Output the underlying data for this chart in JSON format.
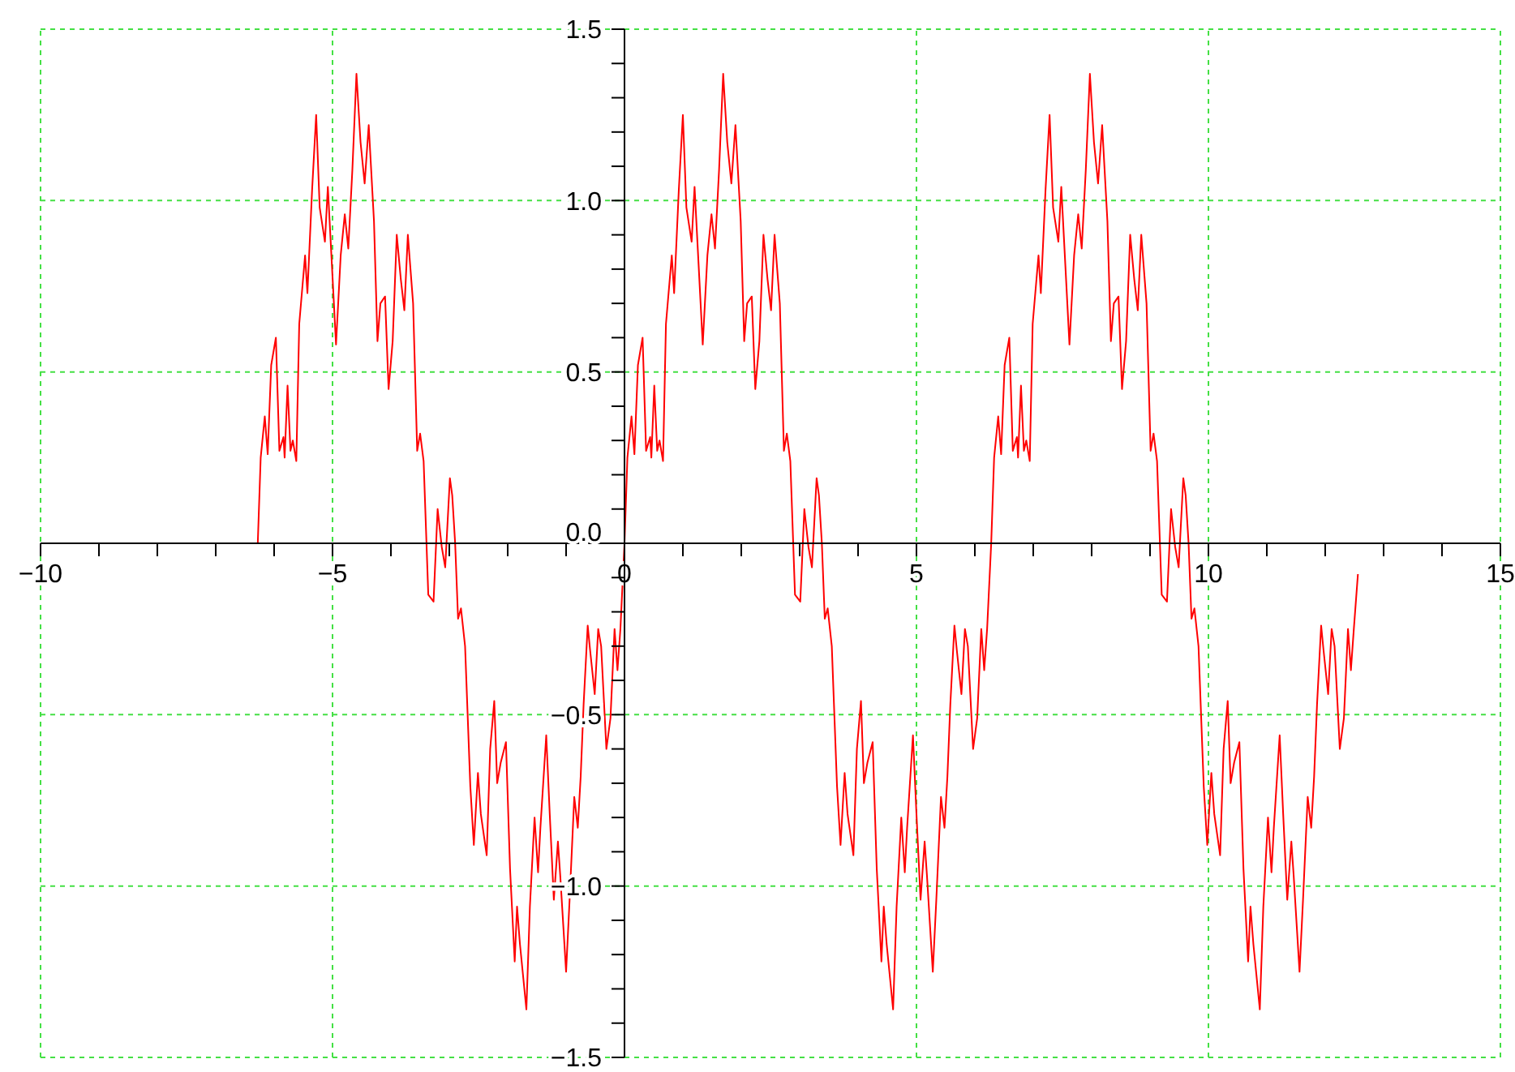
{
  "chart_data": {
    "type": "line",
    "grid": true,
    "xlim": [
      -10,
      15
    ],
    "ylim": [
      -1.5,
      1.5
    ],
    "xticks": [
      {
        "value": -10,
        "label": "−10"
      },
      {
        "value": -9,
        "label": null
      },
      {
        "value": -8,
        "label": null
      },
      {
        "value": -7,
        "label": null
      },
      {
        "value": -6,
        "label": null
      },
      {
        "value": -5,
        "label": "−5"
      },
      {
        "value": -4,
        "label": null
      },
      {
        "value": -3,
        "label": null
      },
      {
        "value": -2,
        "label": null
      },
      {
        "value": -1,
        "label": null
      },
      0,
      {
        "value": 1,
        "label": null
      },
      {
        "value": 2,
        "label": null
      },
      {
        "value": 3,
        "label": null
      },
      {
        "value": 4,
        "label": null
      },
      5,
      {
        "value": 6,
        "label": null
      },
      {
        "value": 7,
        "label": null
      },
      {
        "value": 8,
        "label": null
      },
      {
        "value": 9,
        "label": null
      },
      10,
      {
        "value": 11,
        "label": null
      },
      {
        "value": 12,
        "label": null
      },
      {
        "value": 13,
        "label": null
      },
      {
        "value": 14,
        "label": null
      },
      15
    ],
    "yticks": [
      {
        "value": -1.5,
        "label": "−1.5"
      },
      {
        "value": -1.4,
        "label": null
      },
      {
        "value": -1.3,
        "label": null
      },
      {
        "value": -1.2,
        "label": null
      },
      {
        "value": -1.1,
        "label": null
      },
      {
        "value": -1,
        "label": "−1.0"
      },
      {
        "value": -0.9,
        "label": null
      },
      {
        "value": -0.8,
        "label": null
      },
      {
        "value": -0.7,
        "label": null
      },
      {
        "value": -0.6,
        "label": null
      },
      {
        "value": -0.5,
        "label": "−0.5"
      },
      {
        "value": -0.4,
        "label": null
      },
      {
        "value": -0.3,
        "label": null
      },
      {
        "value": -0.2,
        "label": null
      },
      {
        "value": -0.1,
        "label": null
      },
      {
        "value": 0,
        "label": "0.0"
      },
      {
        "value": 0.1,
        "label": null
      },
      {
        "value": 0.2,
        "label": null
      },
      {
        "value": 0.3,
        "label": null
      },
      {
        "value": 0.4,
        "label": null
      },
      0.5,
      {
        "value": 0.6,
        "label": null
      },
      {
        "value": 0.7,
        "label": null
      },
      {
        "value": 0.8,
        "label": null
      },
      {
        "value": 0.9,
        "label": null
      },
      {
        "value": 1,
        "label": "1.0"
      },
      {
        "value": 1.1,
        "label": null
      },
      {
        "value": 1.2,
        "label": null
      },
      {
        "value": 1.3,
        "label": null
      },
      {
        "value": 1.4,
        "label": null
      },
      1.5
    ],
    "marker": "none",
    "line_style": "solid",
    "series": [
      {
        "color": "#ff0000",
        "x": [
          -6.28,
          -6.23,
          -6.16,
          -6.11,
          -6.05,
          -5.97,
          -5.91,
          -5.84,
          -5.82,
          -5.77,
          -5.72,
          -5.68,
          -5.62,
          -5.57,
          -5.47,
          -5.43,
          -5.35,
          -5.28,
          -5.22,
          -5.13,
          -5.08,
          -5.01,
          -4.94,
          -4.86,
          -4.79,
          -4.73,
          -4.66,
          -4.59,
          -4.52,
          -4.45,
          -4.38,
          -4.29,
          -4.23,
          -4.18,
          -4.1,
          -4.04,
          -3.97,
          -3.9,
          -3.83,
          -3.77,
          -3.71,
          -3.62,
          -3.55,
          -3.5,
          -3.44,
          -3.36,
          -3.27,
          -3.2,
          -3.13,
          -3.07,
          -2.99,
          -2.95,
          -2.9,
          -2.85,
          -2.8,
          -2.73,
          -2.64,
          -2.58,
          -2.51,
          -2.46,
          -2.36,
          -2.3,
          -2.23,
          -2.18,
          -2.12,
          -2.03,
          -1.96,
          -1.88,
          -1.84,
          -1.79,
          -1.68,
          -1.62,
          -1.54,
          -1.48,
          -1.44,
          -1.34,
          -1.28,
          -1.21,
          -1.14,
          -1.1,
          -1,
          -0.94,
          -0.86,
          -0.8,
          -0.75,
          -0.7,
          -0.63,
          -0.59,
          -0.51,
          -0.45,
          -0.4,
          -0.31,
          -0.24,
          -0.17,
          -0.12,
          -0.07,
          0,
          0.05,
          0.12,
          0.17,
          0.23,
          0.31,
          0.37,
          0.44,
          0.46,
          0.51,
          0.56,
          0.6,
          0.66,
          0.71,
          0.81,
          0.85,
          0.93,
          1,
          1.06,
          1.15,
          1.2,
          1.27,
          1.34,
          1.42,
          1.49,
          1.55,
          1.62,
          1.69,
          1.76,
          1.83,
          1.9,
          1.99,
          2.05,
          2.1,
          2.18,
          2.24,
          2.31,
          2.38,
          2.45,
          2.51,
          2.57,
          2.66,
          2.73,
          2.78,
          2.84,
          2.92,
          3.01,
          3.08,
          3.15,
          3.21,
          3.29,
          3.33,
          3.38,
          3.43,
          3.48,
          3.55,
          3.64,
          3.7,
          3.77,
          3.82,
          3.92,
          3.98,
          4.05,
          4.1,
          4.16,
          4.25,
          4.32,
          4.4,
          4.44,
          4.49,
          4.6,
          4.66,
          4.74,
          4.8,
          4.84,
          4.94,
          5,
          5.07,
          5.14,
          5.18,
          5.28,
          5.34,
          5.42,
          5.48,
          5.53,
          5.58,
          5.65,
          5.69,
          5.77,
          5.83,
          5.88,
          5.97,
          6.04,
          6.11,
          6.16,
          6.21,
          6.28,
          6.33,
          6.4,
          6.45,
          6.51,
          6.59,
          6.65,
          6.72,
          6.74,
          6.79,
          6.84,
          6.88,
          6.94,
          6.99,
          7.09,
          7.13,
          7.21,
          7.28,
          7.34,
          7.43,
          7.48,
          7.55,
          7.62,
          7.7,
          7.77,
          7.83,
          7.9,
          7.97,
          8.04,
          8.11,
          8.18,
          8.27,
          8.33,
          8.38,
          8.46,
          8.52,
          8.59,
          8.66,
          8.73,
          8.79,
          8.85,
          8.94,
          9.01,
          9.06,
          9.12,
          9.2,
          9.29,
          9.36,
          9.43,
          9.49,
          9.57,
          9.61,
          9.66,
          9.71,
          9.76,
          9.83,
          9.92,
          9.98,
          10.05,
          10.1,
          10.2,
          10.26,
          10.33,
          10.38,
          10.44,
          10.53,
          10.6,
          10.68,
          10.72,
          10.77,
          10.88,
          10.94,
          11.02,
          11.08,
          11.12,
          11.22,
          11.28,
          11.35,
          11.42,
          11.46,
          11.56,
          11.62,
          11.7,
          11.76,
          11.81,
          11.86,
          11.93,
          11.97,
          12.05,
          12.11,
          12.16,
          12.25,
          12.32,
          12.39,
          12.44,
          12.49,
          12.56
        ],
        "values": [
          0,
          0.25,
          0.37,
          0.26,
          0.52,
          0.6,
          0.27,
          0.31,
          0.25,
          0.46,
          0.27,
          0.3,
          0.24,
          0.64,
          0.84,
          0.73,
          1.03,
          1.25,
          0.98,
          0.88,
          1.04,
          0.81,
          0.58,
          0.84,
          0.96,
          0.86,
          1.09,
          1.37,
          1.17,
          1.05,
          1.22,
          0.94,
          0.59,
          0.7,
          0.72,
          0.45,
          0.59,
          0.9,
          0.77,
          0.68,
          0.9,
          0.7,
          0.27,
          0.32,
          0.24,
          -0.15,
          -0.17,
          0.1,
          -0.01,
          -0.07,
          0.19,
          0.14,
          0,
          -0.22,
          -0.19,
          -0.3,
          -0.71,
          -0.88,
          -0.67,
          -0.79,
          -0.91,
          -0.6,
          -0.46,
          -0.7,
          -0.64,
          -0.58,
          -0.95,
          -1.22,
          -1.06,
          -1.17,
          -1.36,
          -1.06,
          -0.8,
          -0.96,
          -0.83,
          -0.56,
          -0.79,
          -1.04,
          -0.87,
          -0.97,
          -1.25,
          -1.04,
          -0.74,
          -0.83,
          -0.68,
          -0.47,
          -0.24,
          -0.31,
          -0.44,
          -0.25,
          -0.3,
          -0.6,
          -0.51,
          -0.25,
          -0.37,
          -0.25,
          0,
          0.25,
          0.37,
          0.26,
          0.52,
          0.6,
          0.27,
          0.31,
          0.25,
          0.46,
          0.27,
          0.3,
          0.24,
          0.64,
          0.84,
          0.73,
          1.03,
          1.25,
          0.98,
          0.88,
          1.04,
          0.81,
          0.58,
          0.84,
          0.96,
          0.86,
          1.09,
          1.37,
          1.17,
          1.05,
          1.22,
          0.94,
          0.59,
          0.7,
          0.72,
          0.45,
          0.59,
          0.9,
          0.77,
          0.68,
          0.9,
          0.7,
          0.27,
          0.32,
          0.24,
          -0.15,
          -0.17,
          0.1,
          -0.01,
          -0.07,
          0.19,
          0.14,
          0,
          -0.22,
          -0.19,
          -0.3,
          -0.71,
          -0.88,
          -0.67,
          -0.79,
          -0.91,
          -0.6,
          -0.46,
          -0.7,
          -0.64,
          -0.58,
          -0.95,
          -1.22,
          -1.06,
          -1.17,
          -1.36,
          -1.06,
          -0.8,
          -0.96,
          -0.83,
          -0.56,
          -0.79,
          -1.04,
          -0.87,
          -0.97,
          -1.25,
          -1.04,
          -0.74,
          -0.83,
          -0.68,
          -0.47,
          -0.24,
          -0.31,
          -0.44,
          -0.25,
          -0.3,
          -0.6,
          -0.51,
          -0.25,
          -0.37,
          -0.25,
          0,
          0.25,
          0.37,
          0.26,
          0.52,
          0.6,
          0.27,
          0.31,
          0.25,
          0.46,
          0.27,
          0.3,
          0.24,
          0.64,
          0.84,
          0.73,
          1.03,
          1.25,
          0.98,
          0.88,
          1.04,
          0.81,
          0.58,
          0.84,
          0.96,
          0.86,
          1.09,
          1.37,
          1.17,
          1.05,
          1.22,
          0.94,
          0.59,
          0.7,
          0.72,
          0.45,
          0.59,
          0.9,
          0.77,
          0.68,
          0.9,
          0.7,
          0.27,
          0.32,
          0.24,
          -0.15,
          -0.17,
          0.1,
          -0.01,
          -0.07,
          0.19,
          0.14,
          0,
          -0.22,
          -0.19,
          -0.3,
          -0.71,
          -0.88,
          -0.67,
          -0.79,
          -0.91,
          -0.6,
          -0.46,
          -0.7,
          -0.64,
          -0.58,
          -0.95,
          -1.22,
          -1.06,
          -1.17,
          -1.36,
          -1.06,
          -0.8,
          -0.96,
          -0.83,
          -0.56,
          -0.79,
          -1.04,
          -0.87,
          -0.97,
          -1.25,
          -1.04,
          -0.74,
          -0.83,
          -0.68,
          -0.47,
          -0.24,
          -0.31,
          -0.44,
          -0.25,
          -0.3,
          -0.6,
          -0.51,
          -0.25,
          -0.37,
          -0.25,
          -0.09
        ]
      }
    ]
  }
}
